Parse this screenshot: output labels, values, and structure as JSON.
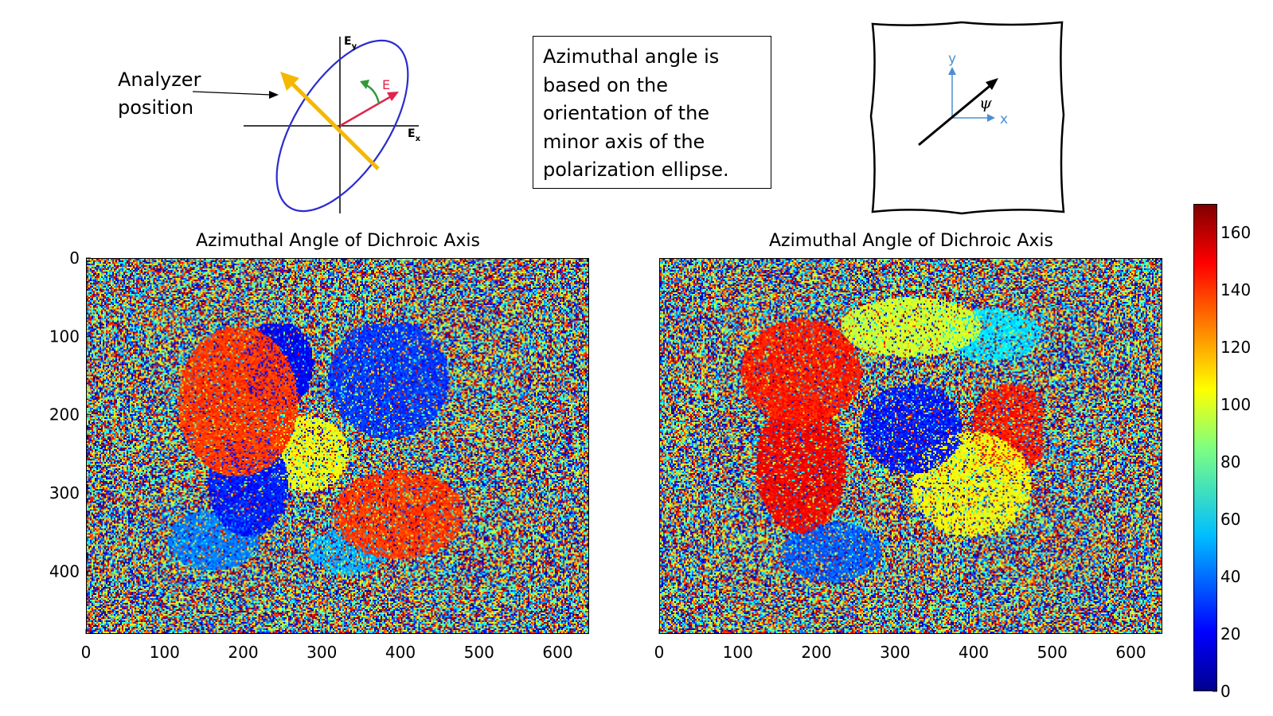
{
  "diagram": {
    "ey_label": "E",
    "ey_sub": "y",
    "ex_label": "E",
    "ex_sub": "x",
    "e_label": "E",
    "analyzer_line1": "Analyzer",
    "analyzer_line2": "position",
    "info_text": [
      "Azimuthal angle is",
      "based on the",
      "orientation of the",
      "minor axis of the",
      "polarization ellipse."
    ],
    "frame_y": "y",
    "frame_x": "x",
    "frame_psi": "ψ"
  },
  "chart_data": [
    {
      "type": "heatmap",
      "title": "Azimuthal Angle of Dichroic Axis",
      "xlim": [
        0,
        640
      ],
      "ylim": [
        480,
        0
      ],
      "xticks": [
        0,
        100,
        200,
        300,
        400,
        500,
        600
      ],
      "yticks": [
        0,
        100,
        200,
        300,
        400
      ],
      "colormap": "jet",
      "vmin": 0,
      "vmax": 170
    },
    {
      "type": "heatmap",
      "title": "Azimuthal Angle of Dichroic Axis",
      "xlim": [
        0,
        640
      ],
      "ylim": [
        480,
        0
      ],
      "xticks": [
        0,
        100,
        200,
        300,
        400,
        500,
        600
      ],
      "colormap": "jet",
      "vmin": 0,
      "vmax": 170
    }
  ],
  "colorbar": {
    "ticks": [
      0,
      20,
      40,
      60,
      80,
      100,
      120,
      140,
      160
    ],
    "range": [
      0,
      170
    ]
  },
  "colors": {
    "ellipse": "#2b2bd0",
    "analyzer": "#f5b800",
    "e_vector": "#e0244c",
    "rotation_arrow": "#2e9a3a",
    "frame_axes": "#4a90d0"
  }
}
